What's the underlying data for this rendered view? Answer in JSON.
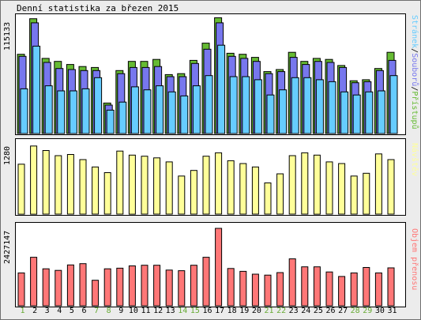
{
  "title": "Denní statistika za březen 2015",
  "colors": {
    "hits": "#66bb33",
    "files": "#7777ee",
    "pages": "#66ccff",
    "visits": "#ffff99",
    "kbytes": "#ff7777",
    "weekend_label": "#66aa33",
    "weekday_label": "#000000",
    "bar_border": "#000000"
  },
  "chart_data": [
    {
      "type": "bar",
      "categories": [
        "1",
        "2",
        "3",
        "4",
        "5",
        "6",
        "7",
        "8",
        "9",
        "10",
        "11",
        "12",
        "13",
        "14",
        "15",
        "16",
        "17",
        "18",
        "19",
        "20",
        "21",
        "22",
        "23",
        "24",
        "25",
        "26",
        "27",
        "28",
        "29",
        "30",
        "31"
      ],
      "weekend_days": [
        "1",
        "7",
        "8",
        "14",
        "15",
        "21",
        "22",
        "28",
        "29"
      ],
      "ymax_label": "115133",
      "ylim": [
        0,
        115133
      ],
      "axis_label_parts": [
        {
          "text": "Stránek",
          "color": "#66ccff"
        },
        {
          "text": "/",
          "color": "#000000"
        },
        {
          "text": "Souborů",
          "color": "#7777ee"
        },
        {
          "text": "/",
          "color": "#000000"
        },
        {
          "text": "Přístupů",
          "color": "#66bb33"
        }
      ],
      "series": [
        {
          "name": "Přístupů",
          "values": [
            78000,
            113000,
            74000,
            71000,
            68000,
            66000,
            65000,
            30000,
            62000,
            71000,
            71000,
            73000,
            58000,
            59000,
            72000,
            89000,
            114000,
            79000,
            78000,
            75000,
            61000,
            63000,
            80000,
            71000,
            74000,
            73000,
            67000,
            52000,
            53000,
            64000,
            80000
          ]
        },
        {
          "name": "Souborů",
          "values": [
            76000,
            109000,
            70000,
            64000,
            63000,
            62000,
            62000,
            28000,
            59000,
            65000,
            65000,
            66000,
            56000,
            56000,
            69000,
            83000,
            109000,
            76000,
            74000,
            71000,
            59000,
            61000,
            75000,
            68000,
            71000,
            70000,
            65000,
            50000,
            51000,
            62000,
            72000
          ]
        },
        {
          "name": "Stránek",
          "values": [
            44000,
            86000,
            47000,
            42000,
            42000,
            44000,
            55000,
            23000,
            31000,
            46000,
            43000,
            47000,
            41000,
            37000,
            47000,
            57000,
            87000,
            56000,
            56000,
            53000,
            38000,
            43000,
            55000,
            55000,
            53000,
            51000,
            41000,
            38000,
            41000,
            42000,
            57000
          ]
        }
      ]
    },
    {
      "type": "bar",
      "categories": [
        "1",
        "2",
        "3",
        "4",
        "5",
        "6",
        "7",
        "8",
        "9",
        "10",
        "11",
        "12",
        "13",
        "14",
        "15",
        "16",
        "17",
        "18",
        "19",
        "20",
        "21",
        "22",
        "23",
        "24",
        "25",
        "26",
        "27",
        "28",
        "29",
        "30",
        "31"
      ],
      "ymax_label": "1280",
      "ylim": [
        0,
        1280
      ],
      "axis_label_parts": [
        {
          "text": "Návštěv",
          "color": "#ffff99"
        }
      ],
      "series": [
        {
          "name": "Návštěv",
          "values": [
            880,
            1200,
            1120,
            1030,
            1050,
            960,
            830,
            730,
            1110,
            1040,
            1020,
            990,
            920,
            670,
            770,
            1020,
            1080,
            940,
            890,
            830,
            550,
            710,
            1030,
            1080,
            1040,
            920,
            890,
            670,
            720,
            1060,
            960
          ]
        }
      ]
    },
    {
      "type": "bar",
      "categories": [
        "1",
        "2",
        "3",
        "4",
        "5",
        "6",
        "7",
        "8",
        "9",
        "10",
        "11",
        "12",
        "13",
        "14",
        "15",
        "16",
        "17",
        "18",
        "19",
        "20",
        "21",
        "22",
        "23",
        "24",
        "25",
        "26",
        "27",
        "28",
        "29",
        "30",
        "31"
      ],
      "ymax_label": "2427147",
      "ylim": [
        0,
        2427147
      ],
      "axis_label_parts": [
        {
          "text": "Objem přenosu",
          "color": "#ff7777"
        }
      ],
      "series": [
        {
          "name": "Objem přenosu",
          "values": [
            1030000,
            1520000,
            1160000,
            1110000,
            1280000,
            1320000,
            800000,
            1160000,
            1180000,
            1250000,
            1270000,
            1270000,
            1120000,
            1100000,
            1270000,
            1520000,
            2427147,
            1170000,
            1080000,
            990000,
            960000,
            1040000,
            1470000,
            1220000,
            1220000,
            1060000,
            920000,
            1030000,
            1200000,
            1030000,
            1190000
          ]
        }
      ]
    }
  ]
}
